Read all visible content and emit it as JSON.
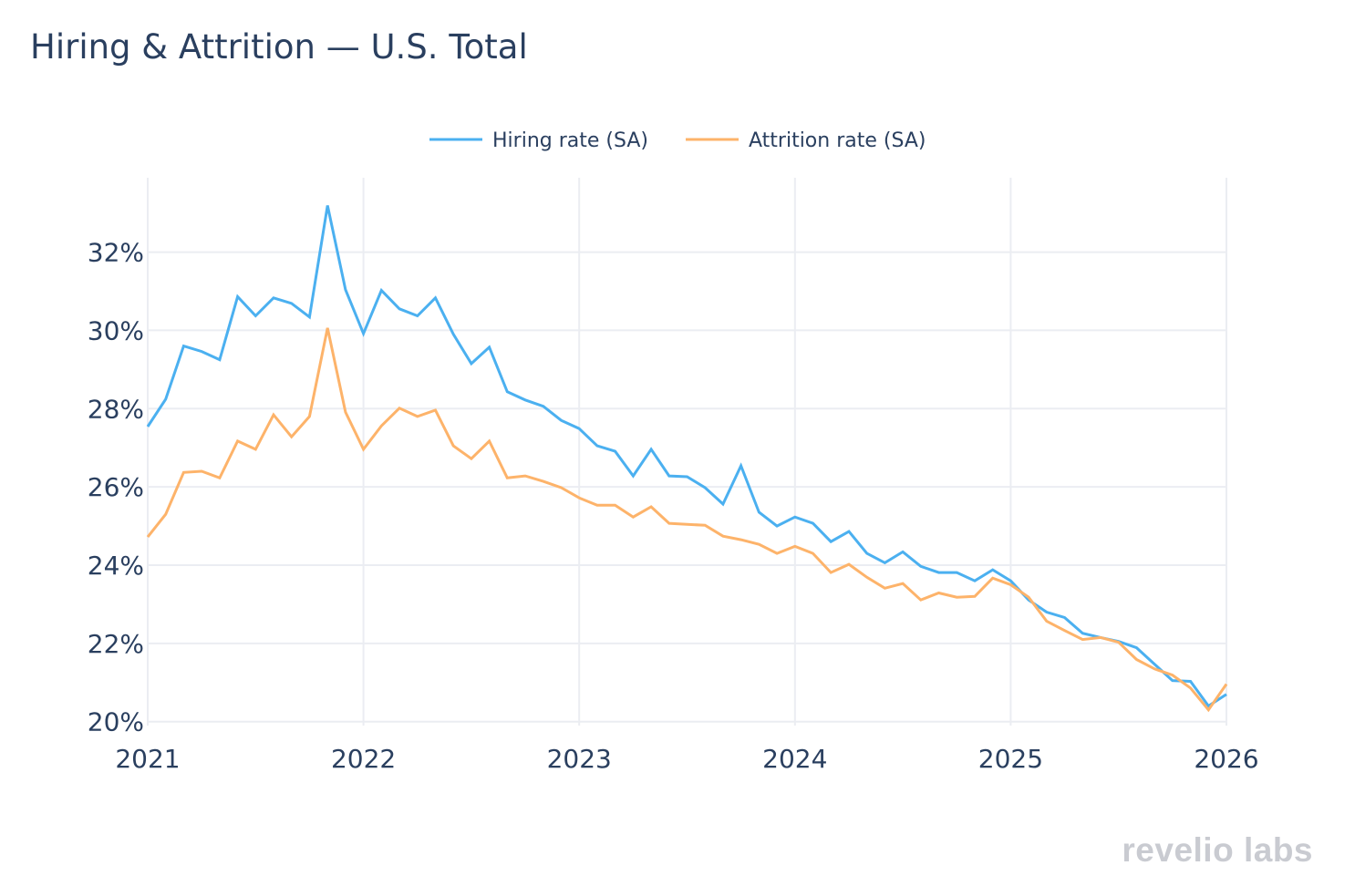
{
  "chart_data": {
    "type": "line",
    "title": "Hiring & Attrition — U.S. Total",
    "xlabel": "",
    "ylabel": "",
    "x_start": "2021-01",
    "x_frequency": "monthly",
    "x_ticks": [
      "2021",
      "2022",
      "2023",
      "2024",
      "2025",
      "2026"
    ],
    "xlim": [
      "2021-01",
      "2026-01"
    ],
    "y_ticks": [
      "20%",
      "22%",
      "24%",
      "26%",
      "28%",
      "30%",
      "32%"
    ],
    "ylim": [
      19.9,
      33.9
    ],
    "y_unit": "%",
    "grid": true,
    "legend_position": "top-center",
    "series": [
      {
        "name": "Hiring rate (SA)",
        "color": "#4bb0f0",
        "values": [
          27.54,
          28.24,
          29.6,
          29.46,
          29.25,
          30.86,
          30.37,
          30.83,
          30.69,
          30.34,
          33.19,
          31.04,
          29.92,
          31.02,
          30.55,
          30.37,
          30.83,
          29.9,
          29.15,
          29.57,
          28.43,
          28.22,
          28.06,
          27.7,
          27.49,
          27.05,
          26.91,
          26.28,
          26.96,
          26.28,
          26.26,
          25.98,
          25.56,
          26.54,
          25.35,
          25.0,
          25.23,
          25.07,
          24.6,
          24.86,
          24.3,
          24.06,
          24.34,
          23.97,
          23.81,
          23.81,
          23.6,
          23.88,
          23.6,
          23.11,
          22.8,
          22.66,
          22.26,
          22.15,
          22.05,
          21.89,
          21.47,
          21.05,
          21.03,
          20.4,
          20.7
        ]
      },
      {
        "name": "Attrition rate (SA)",
        "color": "#fdb36a",
        "values": [
          24.72,
          25.3,
          26.37,
          26.4,
          26.23,
          27.17,
          26.96,
          27.84,
          27.28,
          27.8,
          30.06,
          27.91,
          26.96,
          27.56,
          28.01,
          27.8,
          27.96,
          27.05,
          26.72,
          27.17,
          26.23,
          26.28,
          26.14,
          25.98,
          25.72,
          25.53,
          25.53,
          25.23,
          25.49,
          25.07,
          25.04,
          25.02,
          24.74,
          24.65,
          24.53,
          24.3,
          24.48,
          24.3,
          23.81,
          24.02,
          23.69,
          23.41,
          23.53,
          23.11,
          23.29,
          23.18,
          23.2,
          23.67,
          23.5,
          23.18,
          22.57,
          22.33,
          22.1,
          22.15,
          22.03,
          21.59,
          21.35,
          21.19,
          20.86,
          20.3,
          20.96
        ]
      }
    ]
  },
  "logo": {
    "text": "revelio labs"
  }
}
